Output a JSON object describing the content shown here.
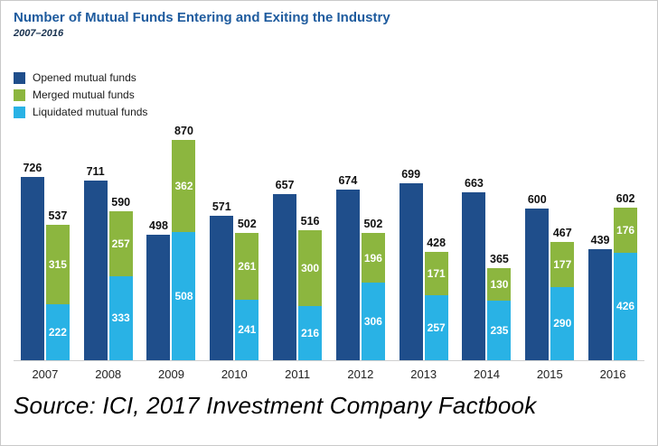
{
  "title": "Number of Mutual Funds Entering and Exiting the Industry",
  "subtitle": "2007–2016",
  "source": "Source: ICI, 2017 Investment Company Factbook",
  "legend": [
    {
      "label": "Opened mutual funds",
      "color": "#1f4e8b"
    },
    {
      "label": "Merged mutual funds",
      "color": "#8cb63f"
    },
    {
      "label": "Liquidated mutual funds",
      "color": "#29b2e5"
    }
  ],
  "colors": {
    "opened": "#1f4e8b",
    "merged": "#8cb63f",
    "liquidated": "#29b2e5",
    "title": "#1e5b9e"
  },
  "chart_data": {
    "type": "bar",
    "title": "Number of Mutual Funds Entering and Exiting the Industry",
    "subtitle": "2007–2016",
    "categories": [
      "2007",
      "2008",
      "2009",
      "2010",
      "2011",
      "2012",
      "2013",
      "2014",
      "2015",
      "2016"
    ],
    "series": [
      {
        "name": "Opened mutual funds",
        "color": "#1f4e8b",
        "values": [
          726,
          711,
          498,
          571,
          657,
          674,
          699,
          663,
          600,
          439
        ]
      },
      {
        "name": "Liquidated mutual funds",
        "color": "#29b2e5",
        "values": [
          222,
          333,
          508,
          241,
          216,
          306,
          257,
          235,
          290,
          426
        ]
      },
      {
        "name": "Merged mutual funds",
        "color": "#8cb63f",
        "values": [
          315,
          257,
          362,
          261,
          300,
          196,
          171,
          130,
          177,
          176
        ]
      }
    ],
    "stacked_totals": [
      537,
      590,
      870,
      502,
      516,
      502,
      428,
      365,
      467,
      602
    ],
    "layout": "opened bar side-by-side with stacked (liquidated bottom + merged top) bar per year",
    "xlabel": "",
    "ylabel": "",
    "ylim": [
      0,
      900
    ],
    "grid": false,
    "legend_position": "top-left"
  }
}
